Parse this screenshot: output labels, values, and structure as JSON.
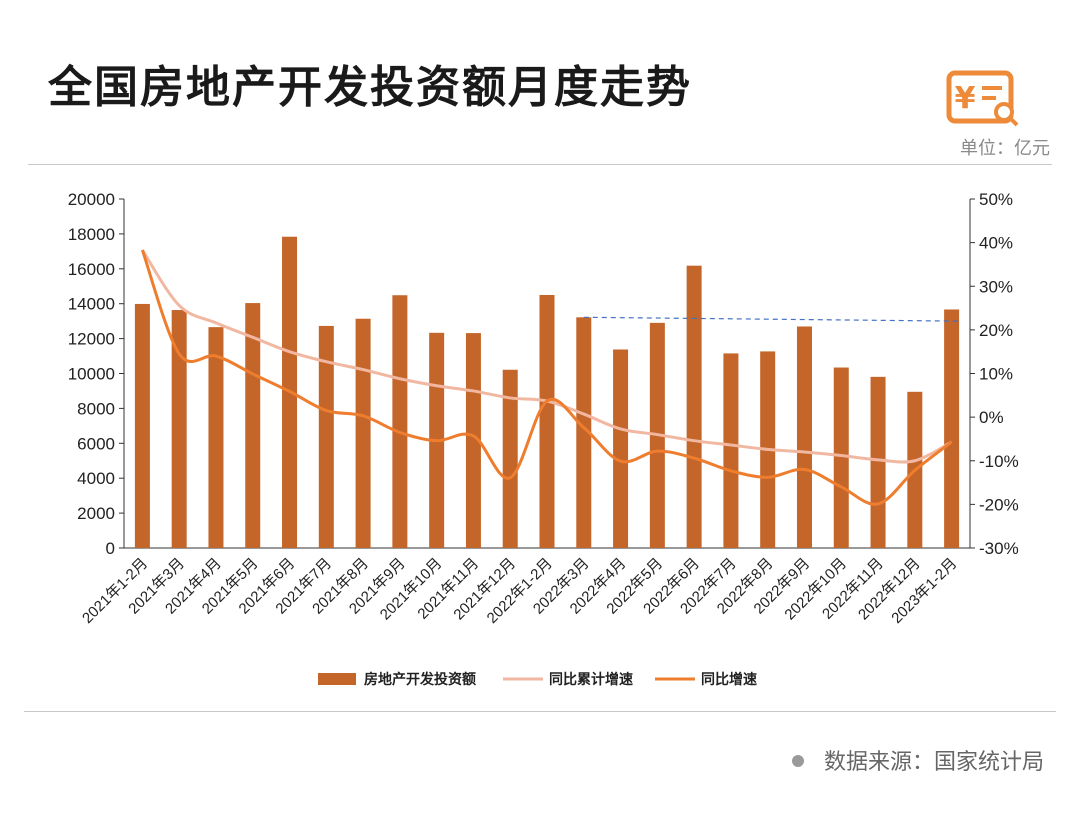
{
  "header": {
    "title": "全国房地产开发投资额月度走势",
    "unit": "单位：亿元",
    "logo_icon": "yen-document-search-icon"
  },
  "footer": {
    "source": "数据来源：国家统计局"
  },
  "colors": {
    "bar": "#C4652A",
    "cumulative_line": "#F2B7A0",
    "yoy_line": "#EE7D2E",
    "reference_line": "#4472C4",
    "logo": "#EE8B3A"
  },
  "chart_data": {
    "type": "bar",
    "categories": [
      "2021年1-2月",
      "2021年3月",
      "2021年4月",
      "2021年5月",
      "2021年6月",
      "2021年7月",
      "2021年8月",
      "2021年9月",
      "2021年10月",
      "2021年11月",
      "2021年12月",
      "2022年1-2月",
      "2022年3月",
      "2022年4月",
      "2022年5月",
      "2022年6月",
      "2022年7月",
      "2022年8月",
      "2022年9月",
      "2022年10月",
      "2022年11月",
      "2022年12月",
      "2023年1-2月"
    ],
    "y_left": {
      "ticks": [
        "20000",
        "18000",
        "16000",
        "14000",
        "12000",
        "10000",
        "8000",
        "6000",
        "4000",
        "2000",
        "0"
      ],
      "ylim": [
        0,
        20000
      ]
    },
    "y_right": {
      "ticks": [
        "50%",
        "40%",
        "30%",
        "20%",
        "10%",
        "0%",
        "-10%",
        "-20%",
        "-30%"
      ],
      "ylim": [
        -30,
        50
      ]
    },
    "series": [
      {
        "name": "房地产开发投资额",
        "type": "bar",
        "axis": "left",
        "values": [
          13986,
          13637,
          12657,
          14036,
          17838,
          12727,
          13138,
          14485,
          12332,
          12316,
          10215,
          14499,
          13221,
          11376,
          12902,
          16179,
          11151,
          11266,
          12694,
          10342,
          9808,
          8951,
          13669
        ]
      },
      {
        "name": "同比累计增速",
        "type": "line",
        "axis": "right",
        "values": [
          38.3,
          25.6,
          21.6,
          18.3,
          15.0,
          12.7,
          10.9,
          8.8,
          7.2,
          6.0,
          4.4,
          3.7,
          0.7,
          -2.7,
          -4.0,
          -5.4,
          -6.4,
          -7.4,
          -8.0,
          -8.8,
          -9.8,
          -10.0,
          -5.7
        ]
      },
      {
        "name": "同比增速",
        "type": "line",
        "axis": "right",
        "values": [
          38.3,
          14.5,
          14.0,
          9.9,
          5.9,
          1.5,
          0.3,
          -3.5,
          -5.4,
          -4.3,
          -13.9,
          3.7,
          -2.4,
          -10.1,
          -7.8,
          -9.4,
          -12.3,
          -13.8,
          -12.0,
          -16.0,
          -19.9,
          -12.2,
          -5.7
        ]
      }
    ],
    "reference_line": {
      "style": "dashed",
      "axis": "left",
      "from_category": "2022年3月",
      "to_category": "2023年1-2月",
      "values": [
        13221,
        13000
      ]
    },
    "legend": {
      "placement": "bottom"
    },
    "grid": false
  }
}
